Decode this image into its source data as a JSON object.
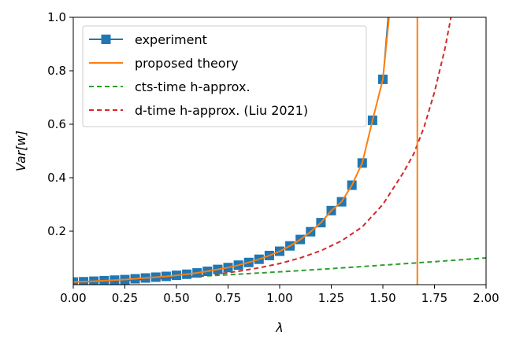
{
  "chart_data": {
    "type": "line",
    "title": "",
    "xlabel": "λ",
    "ylabel": "Var[w]",
    "xlim": [
      0,
      2
    ],
    "ylim": [
      0,
      1
    ],
    "x_ticks": [
      0.0,
      0.25,
      0.5,
      0.75,
      1.0,
      1.25,
      1.5,
      1.75,
      2.0
    ],
    "x_tick_labels": [
      "0.00",
      "0.25",
      "0.50",
      "0.75",
      "1.00",
      "1.25",
      "1.50",
      "1.75",
      "2.00"
    ],
    "y_ticks": [
      0.2,
      0.4,
      0.6,
      0.8,
      1.0
    ],
    "y_tick_labels": [
      "0.2",
      "0.4",
      "0.6",
      "0.8",
      "1.0"
    ],
    "grid": false,
    "legend_position": "upper-left",
    "series": [
      {
        "name": "experiment",
        "style": "line-square-markers",
        "color": "#1f77b4",
        "x": [
          0.0,
          0.05,
          0.1,
          0.15,
          0.2,
          0.25,
          0.3,
          0.35,
          0.4,
          0.45,
          0.5,
          0.55,
          0.6,
          0.65,
          0.7,
          0.75,
          0.8,
          0.85,
          0.9,
          0.95,
          1.0,
          1.05,
          1.1,
          1.15,
          1.2,
          1.25,
          1.3,
          1.35,
          1.4,
          1.45,
          1.5,
          1.525
        ],
        "y": [
          0.01,
          0.011,
          0.013,
          0.015,
          0.017,
          0.019,
          0.022,
          0.025,
          0.028,
          0.031,
          0.035,
          0.039,
          0.044,
          0.05,
          0.057,
          0.064,
          0.073,
          0.083,
          0.095,
          0.109,
          0.125,
          0.145,
          0.169,
          0.198,
          0.232,
          0.277,
          0.31,
          0.372,
          0.455,
          0.615,
          0.768,
          1.0
        ],
        "marker_count": 31
      },
      {
        "name": "proposed theory",
        "style": "solid",
        "color": "#ff7f0e",
        "x": [
          0.0,
          0.05,
          0.1,
          0.15,
          0.2,
          0.25,
          0.3,
          0.35,
          0.4,
          0.45,
          0.5,
          0.55,
          0.6,
          0.65,
          0.7,
          0.75,
          0.8,
          0.85,
          0.9,
          0.95,
          1.0,
          1.05,
          1.1,
          1.15,
          1.2,
          1.25,
          1.3,
          1.35,
          1.4,
          1.45,
          1.5,
          1.53
        ],
        "y": [
          0.01,
          0.011,
          0.013,
          0.015,
          0.017,
          0.019,
          0.022,
          0.025,
          0.028,
          0.031,
          0.035,
          0.039,
          0.044,
          0.05,
          0.057,
          0.064,
          0.073,
          0.083,
          0.095,
          0.109,
          0.125,
          0.145,
          0.169,
          0.198,
          0.232,
          0.277,
          0.31,
          0.372,
          0.455,
          0.615,
          0.768,
          1.0
        ],
        "vertical_line_x": 1.667
      },
      {
        "name": "cts-time h-approx.",
        "style": "dashed",
        "color": "#2ca02c",
        "x": [
          0.0,
          0.25,
          0.5,
          0.75,
          1.0,
          1.25,
          1.5,
          1.75,
          2.0
        ],
        "y": [
          0.01,
          0.018,
          0.027,
          0.037,
          0.048,
          0.06,
          0.073,
          0.086,
          0.1
        ]
      },
      {
        "name": "d-time h-approx. (Liu 2021)",
        "style": "dashed",
        "color": "#d62728",
        "x": [
          0.0,
          0.1,
          0.2,
          0.3,
          0.4,
          0.5,
          0.6,
          0.7,
          0.8,
          0.9,
          1.0,
          1.1,
          1.2,
          1.3,
          1.4,
          1.5,
          1.6,
          1.65,
          1.7,
          1.75,
          1.8,
          1.83
        ],
        "y": [
          0.01,
          0.012,
          0.015,
          0.018,
          0.022,
          0.026,
          0.032,
          0.04,
          0.05,
          0.063,
          0.079,
          0.1,
          0.127,
          0.164,
          0.216,
          0.3,
          0.42,
          0.49,
          0.59,
          0.72,
          0.88,
          1.0
        ]
      }
    ]
  }
}
